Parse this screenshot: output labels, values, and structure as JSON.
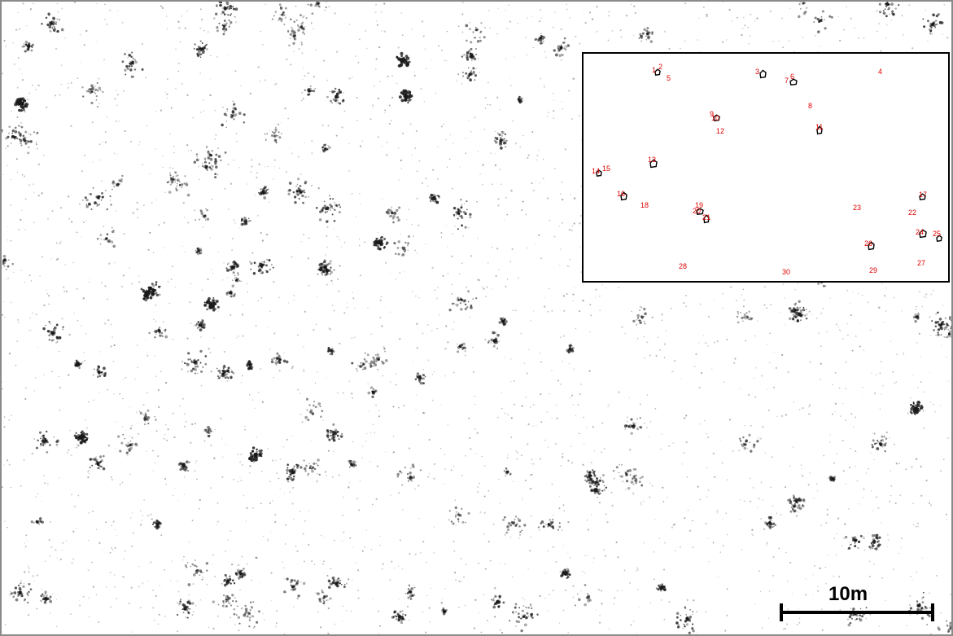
{
  "scale_bar": {
    "label": "10m"
  },
  "inset": {
    "title": "",
    "tree_labels": [
      "1",
      "2",
      "3",
      "4",
      "5",
      "6",
      "7",
      "8",
      "9",
      "10",
      "11",
      "12",
      "13",
      "14",
      "15",
      "16",
      "17",
      "18",
      "19",
      "20",
      "21",
      "22",
      "23",
      "24",
      "25",
      "26",
      "27",
      "28",
      "29",
      "30"
    ]
  },
  "colors": {
    "label": "#e00000",
    "speckle": "#1a1a1a",
    "frame": "#8a8a8a"
  }
}
